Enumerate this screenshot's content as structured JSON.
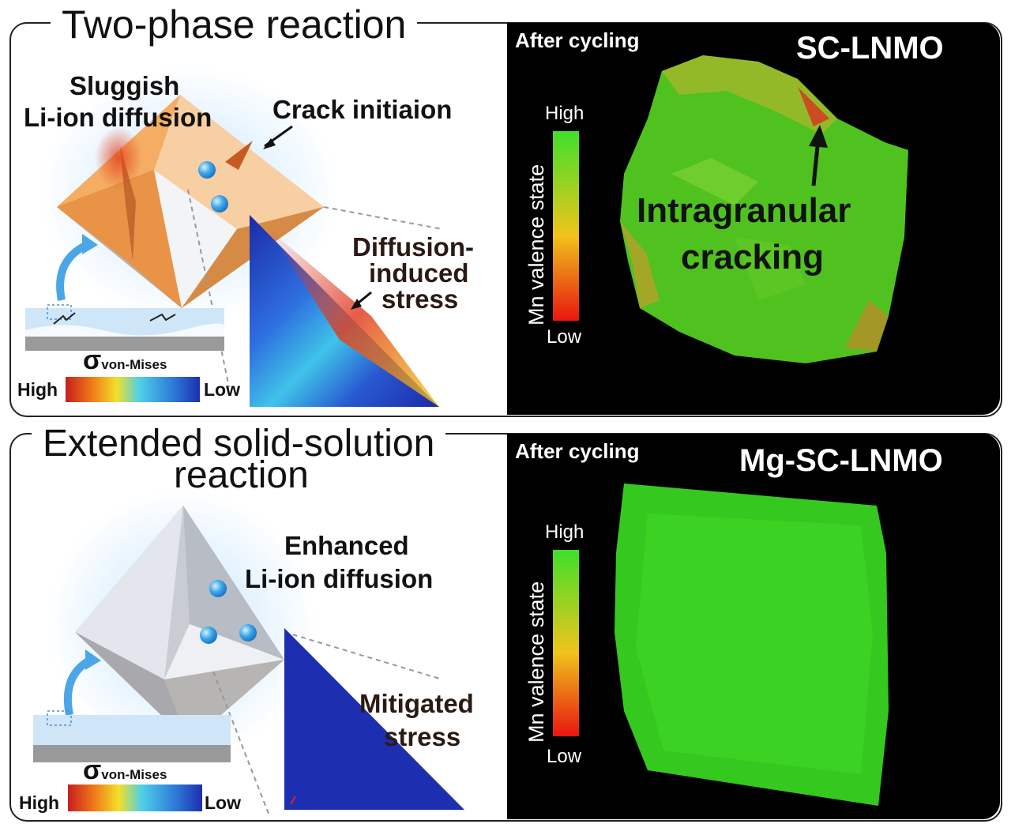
{
  "top_panel": {
    "title": "Two-phase reaction",
    "label_diffusion_line1": "Sluggish",
    "label_diffusion_line2": "Li-ion diffusion",
    "label_crack": "Crack initiaion",
    "label_stress_line1": "Diffusion-",
    "label_stress_line2": "induced",
    "label_stress_line3": "stress",
    "sigma_symbol": "σ",
    "sigma_subscript": "von-Mises",
    "scale_high": "High",
    "scale_low": "Low",
    "map_caption": "After cycling",
    "sample_name": "SC-LNMO",
    "map_annotation_line1": "Intragranular",
    "map_annotation_line2": "cracking",
    "colorbar_high": "High",
    "colorbar_low": "Low",
    "colorbar_label": "Mn valence state"
  },
  "bottom_panel": {
    "title_line1": "Extended solid-solution",
    "title_line2": "reaction",
    "label_diffusion_line1": "Enhanced",
    "label_diffusion_line2": "Li-ion diffusion",
    "label_stress_line1": "Mitigated",
    "label_stress_line2": "stress",
    "sigma_symbol": "σ",
    "sigma_subscript": "von-Mises",
    "scale_high": "High",
    "scale_low": "Low",
    "map_caption": "After cycling",
    "sample_name": "Mg-SC-LNMO",
    "colorbar_high": "High",
    "colorbar_low": "Low",
    "colorbar_label": "Mn valence state"
  },
  "colors": {
    "crystal_orange": "#f0a455",
    "crystal_gray": "#c9ccd3",
    "map_green": "#3cd12a",
    "stress_blue": "#1d2fb0"
  }
}
